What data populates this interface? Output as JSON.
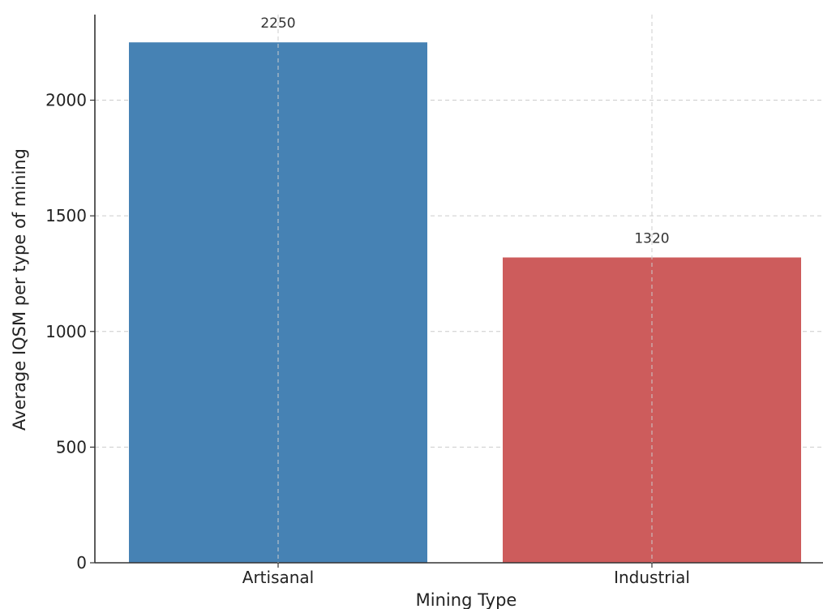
{
  "chart_data": {
    "type": "bar",
    "categories": [
      "Artisanal",
      "Industrial"
    ],
    "values": [
      2250,
      1320
    ],
    "data_labels": [
      "2250",
      "1320"
    ],
    "colors": [
      "#4682b4",
      "#cd5c5c"
    ],
    "xlabel": "Mining Type",
    "ylabel": "Average IQSM per type of mining",
    "ylim": [
      0,
      2370
    ],
    "yticks": [
      0,
      500,
      1000,
      1500,
      2000
    ],
    "grid": true
  }
}
